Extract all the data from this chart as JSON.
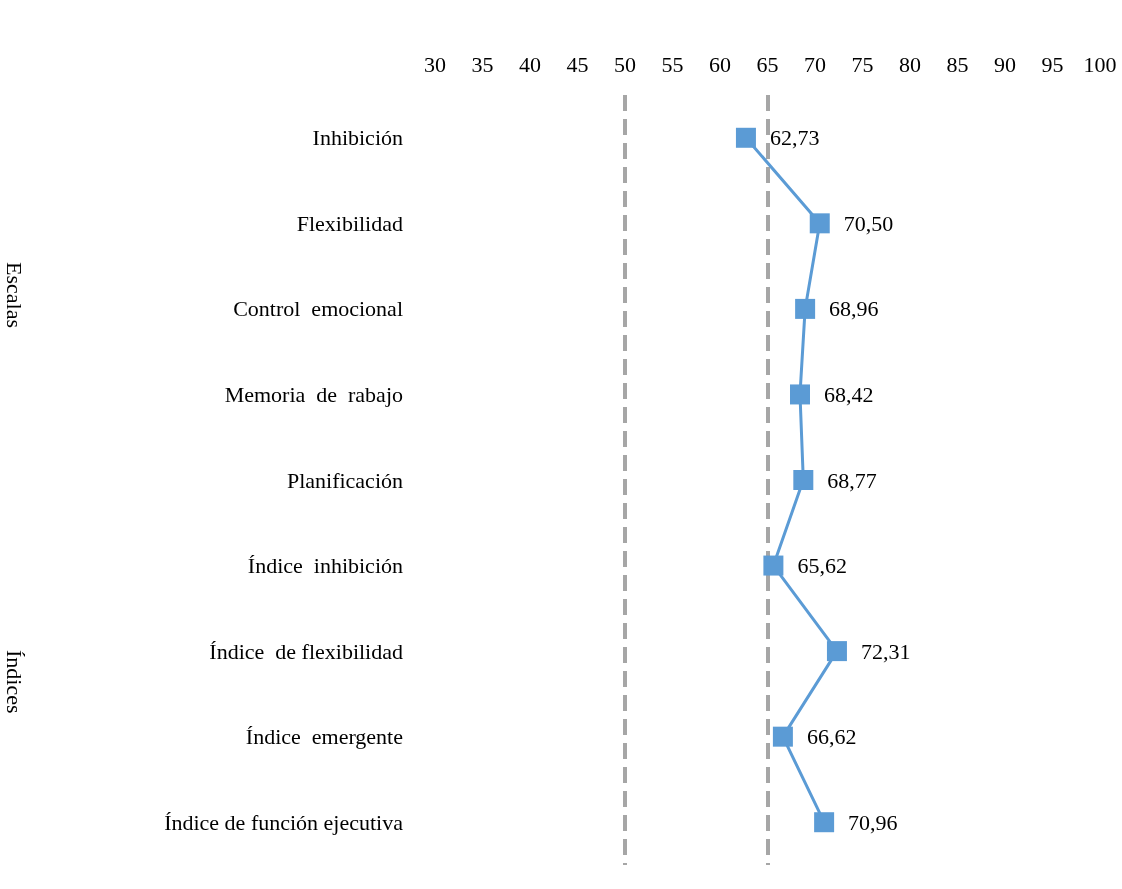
{
  "chart_data": {
    "type": "line",
    "orientation": "horizontal",
    "categories": [
      "Inhibición",
      "Flexibilidad",
      "Control  emocional",
      "Memoria  de  rabajo",
      "Planificación",
      "Índice  inhibición",
      "Índice  de flexibilidad",
      "Índice  emergente",
      "Índice de función ejecutiva"
    ],
    "series": [
      {
        "color": "#5b9bd5",
        "values": [
          62.73,
          70.5,
          68.96,
          68.42,
          68.77,
          65.62,
          72.31,
          66.62,
          70.96
        ],
        "value_labels": [
          "62,73",
          "70,50",
          "68,96",
          "68,42",
          "68,77",
          "65,62",
          "72,31",
          "66,62",
          "70,96"
        ]
      }
    ],
    "xlim": [
      30,
      100
    ],
    "xticks": [
      30,
      35,
      40,
      45,
      50,
      55,
      60,
      65,
      70,
      75,
      80,
      85,
      90,
      95,
      100
    ],
    "ref_lines": [
      {
        "axis": "x",
        "value": 50,
        "color": "#a6a6a6",
        "line_style": "dashed"
      },
      {
        "axis": "x",
        "value": 65,
        "color": "#a6a6a6",
        "line_style": "dashed"
      }
    ],
    "annotations": [
      "Escalas",
      "Índices"
    ],
    "marker": "square",
    "line_style": "solid"
  }
}
